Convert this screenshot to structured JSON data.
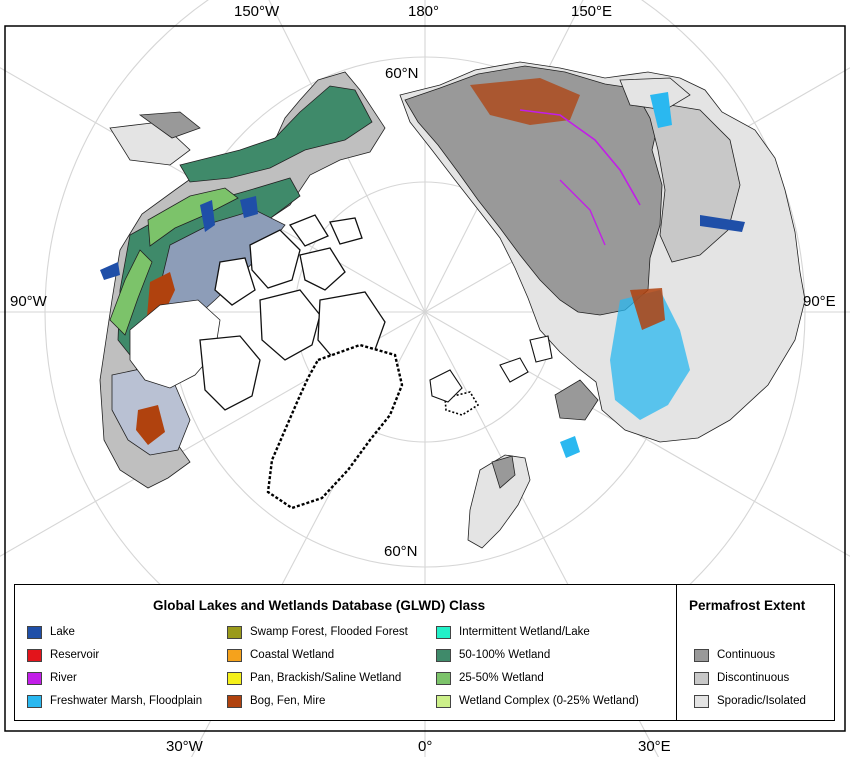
{
  "coordinate_labels": {
    "top_left": "150°W",
    "top_center": "180°",
    "top_right": "150°E",
    "lat_top": "60°N",
    "left": "90°W",
    "right": "90°E",
    "lat_bottom": "60°N",
    "bottom_left": "30°W",
    "bottom_center": "0°",
    "bottom_right": "30°E"
  },
  "colors": {
    "ocean": "#ffffff",
    "border": "#000000",
    "graticule": "#d4d4d4",
    "coast_outline": "#8c8c8c"
  },
  "glwd_legend": {
    "title": "Global Lakes and Wetlands Database (GLWD) Class",
    "items": [
      {
        "label": "Lake",
        "color": "#1f4fa8"
      },
      {
        "label": "Reservoir",
        "color": "#e3141b"
      },
      {
        "label": "River",
        "color": "#c21ee8"
      },
      {
        "label": "Freshwater Marsh, Floodplain",
        "color": "#2ab8f0"
      },
      {
        "label": "Swamp Forest, Flooded Forest",
        "color": "#9a9a1a"
      },
      {
        "label": "Coastal Wetland",
        "color": "#f5a21c"
      },
      {
        "label": "Pan, Brackish/Saline Wetland",
        "color": "#f5f01a"
      },
      {
        "label": "Bog, Fen, Mire",
        "color": "#b0420e"
      },
      {
        "label": "Intermittent Wetland/Lake",
        "color": "#22f0c8"
      },
      {
        "label": "50-100% Wetland",
        "color": "#3f8a6a"
      },
      {
        "label": "25-50% Wetland",
        "color": "#7cc36a"
      },
      {
        "label": "Wetland Complex (0-25% Wetland)",
        "color": "#cdf08a"
      }
    ]
  },
  "permafrost_legend": {
    "title": "Permafrost Extent",
    "items": [
      {
        "label": "Continuous",
        "color": "#999999"
      },
      {
        "label": "Discontinuous",
        "color": "#c8c8c8"
      },
      {
        "label": "Sporadic/Isolated",
        "color": "#e4e4e4"
      }
    ]
  }
}
